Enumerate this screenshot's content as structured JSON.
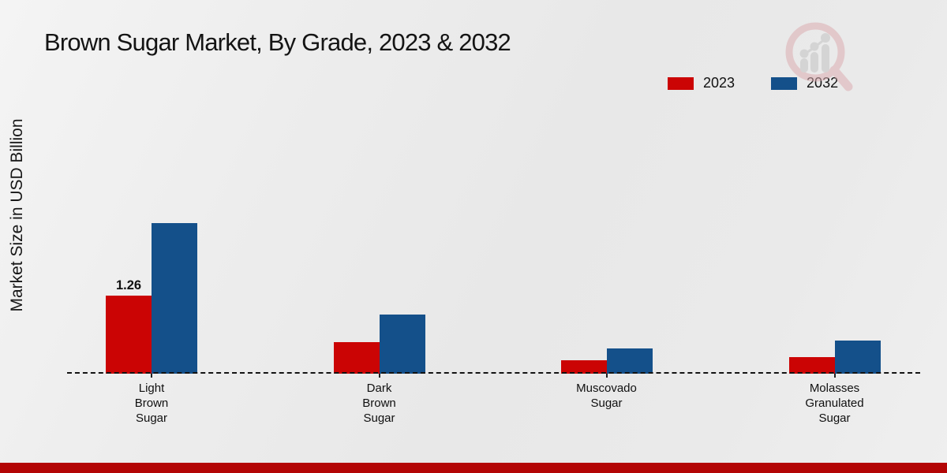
{
  "title": "Brown Sugar Market, By Grade, 2023 & 2032",
  "y_axis_label": "Market Size in USD Billion",
  "colors": {
    "series_2023": "#cb0404",
    "series_2032": "#14508a",
    "bottom_accent_bar": "#b30505",
    "watermark_ring": "#dcaeb2",
    "watermark_bars": "#c3c3c3"
  },
  "watermark_icon": "magnifier-bar-chart-logo",
  "chart_data": {
    "type": "bar",
    "title": "Brown Sugar Market, By Grade, 2023 & 2032",
    "ylabel": "Market Size in USD Billion",
    "xlabel": "",
    "categories": [
      "Light Brown Sugar",
      "Dark Brown Sugar",
      "Muscovado Sugar",
      "Molasses Granulated Sugar"
    ],
    "category_label_lines": [
      [
        "Light",
        "Brown",
        "Sugar"
      ],
      [
        "Dark",
        "Brown",
        "Sugar"
      ],
      [
        "Muscovado",
        "Sugar"
      ],
      [
        "Molasses",
        "Granulated",
        "Sugar"
      ]
    ],
    "series": [
      {
        "name": "2023",
        "color": "#cb0404",
        "values": [
          1.26,
          0.51,
          0.22,
          0.27
        ]
      },
      {
        "name": "2032",
        "color": "#14508a",
        "values": [
          2.43,
          0.95,
          0.41,
          0.53
        ]
      }
    ],
    "data_labels": [
      {
        "series_index": 0,
        "category_index": 0,
        "text": "1.26"
      }
    ],
    "unit": "USD Billion",
    "baseline_style": "dashed",
    "grid": false,
    "y_axis_ticks_visible": false,
    "legend_position": "top-right"
  }
}
